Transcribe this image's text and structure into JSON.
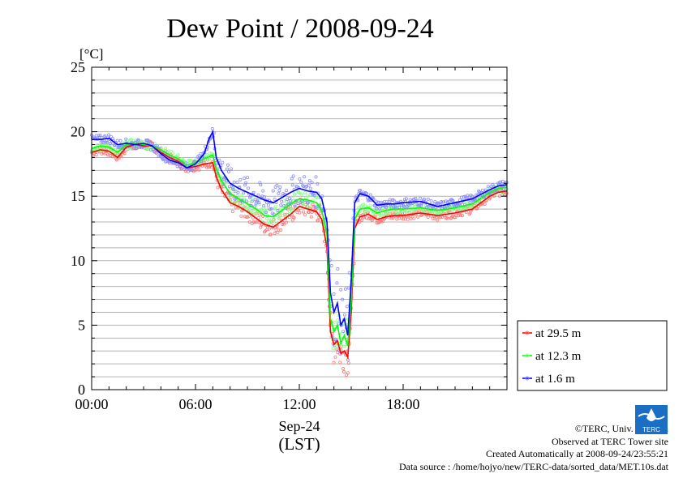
{
  "chart_data": {
    "type": "line",
    "title": "Dew Point / 2008-09-24",
    "ylabel": "[°C]",
    "xlabel_date": "Sep-24",
    "xlabel_tz": "(LST)",
    "ylim": [
      0,
      25
    ],
    "xlim_hours": [
      0,
      24
    ],
    "yticks": [
      "0",
      "5",
      "10",
      "15",
      "20",
      "25"
    ],
    "xticks": [
      {
        "hour": 0,
        "label": "00:00"
      },
      {
        "hour": 6,
        "label": "06:00"
      },
      {
        "hour": 12,
        "label": "12:00"
      },
      {
        "hour": 18,
        "label": "18:00"
      }
    ],
    "grid": true,
    "legend_position": "lower-right, outside plot",
    "series": [
      {
        "name": "at 29.5 m",
        "color": "#ff0000",
        "points": [
          [
            0,
            18.4
          ],
          [
            0.5,
            18.6
          ],
          [
            1,
            18.5
          ],
          [
            1.5,
            18.0
          ],
          [
            2,
            18.8
          ],
          [
            2.5,
            19.0
          ],
          [
            3,
            18.9
          ],
          [
            3.5,
            18.9
          ],
          [
            4,
            18.4
          ],
          [
            4.5,
            18.0
          ],
          [
            5,
            17.7
          ],
          [
            5.5,
            17.2
          ],
          [
            6,
            17.3
          ],
          [
            6.5,
            17.5
          ],
          [
            7,
            17.6
          ],
          [
            7.2,
            16.5
          ],
          [
            7.5,
            15.5
          ],
          [
            8,
            14.5
          ],
          [
            8.5,
            14.2
          ],
          [
            9,
            13.8
          ],
          [
            9.5,
            13.3
          ],
          [
            10,
            12.8
          ],
          [
            10.5,
            12.6
          ],
          [
            11,
            13.1
          ],
          [
            11.5,
            13.6
          ],
          [
            12,
            14.2
          ],
          [
            12.5,
            14.0
          ],
          [
            13,
            13.8
          ],
          [
            13.3,
            13.2
          ],
          [
            13.6,
            11.0
          ],
          [
            13.8,
            4.5
          ],
          [
            14,
            3.5
          ],
          [
            14.2,
            3.8
          ],
          [
            14.4,
            2.8
          ],
          [
            14.6,
            3.0
          ],
          [
            14.8,
            2.5
          ],
          [
            15,
            6.0
          ],
          [
            15.2,
            12.5
          ],
          [
            15.5,
            13.4
          ],
          [
            16,
            13.6
          ],
          [
            16.5,
            13.2
          ],
          [
            17,
            13.4
          ],
          [
            17.5,
            13.5
          ],
          [
            18,
            13.5
          ],
          [
            19,
            13.7
          ],
          [
            20,
            13.5
          ],
          [
            21,
            13.7
          ],
          [
            22,
            14.0
          ],
          [
            23,
            15.0
          ],
          [
            23.5,
            15.3
          ],
          [
            24,
            15.4
          ]
        ]
      },
      {
        "name": "at 12.3 m",
        "color": "#00ff00",
        "points": [
          [
            0,
            18.7
          ],
          [
            0.5,
            18.9
          ],
          [
            1,
            18.8
          ],
          [
            1.5,
            18.4
          ],
          [
            2,
            19.0
          ],
          [
            2.5,
            19.1
          ],
          [
            3,
            19.0
          ],
          [
            3.5,
            18.9
          ],
          [
            4,
            18.6
          ],
          [
            4.5,
            18.2
          ],
          [
            5,
            17.9
          ],
          [
            5.5,
            17.4
          ],
          [
            6,
            17.6
          ],
          [
            6.5,
            17.9
          ],
          [
            7,
            18.2
          ],
          [
            7.2,
            17.1
          ],
          [
            7.5,
            16.2
          ],
          [
            8,
            15.2
          ],
          [
            8.5,
            14.8
          ],
          [
            9,
            14.4
          ],
          [
            9.5,
            14.0
          ],
          [
            10,
            13.5
          ],
          [
            10.5,
            13.4
          ],
          [
            11,
            13.9
          ],
          [
            11.5,
            14.4
          ],
          [
            12,
            14.8
          ],
          [
            12.5,
            14.7
          ],
          [
            13,
            14.5
          ],
          [
            13.3,
            13.9
          ],
          [
            13.6,
            12.0
          ],
          [
            13.8,
            5.5
          ],
          [
            14,
            4.5
          ],
          [
            14.2,
            5.0
          ],
          [
            14.4,
            3.6
          ],
          [
            14.6,
            4.2
          ],
          [
            14.8,
            3.4
          ],
          [
            15,
            7.0
          ],
          [
            15.2,
            13.2
          ],
          [
            15.5,
            14.0
          ],
          [
            16,
            14.1
          ],
          [
            16.5,
            13.7
          ],
          [
            17,
            13.9
          ],
          [
            17.5,
            14.0
          ],
          [
            18,
            14.0
          ],
          [
            19,
            14.1
          ],
          [
            20,
            13.9
          ],
          [
            21,
            14.1
          ],
          [
            22,
            14.4
          ],
          [
            23,
            15.3
          ],
          [
            23.5,
            15.6
          ],
          [
            24,
            15.7
          ]
        ]
      },
      {
        "name": "at 1.6 m",
        "color": "#0000ff",
        "points": [
          [
            0,
            19.4
          ],
          [
            0.5,
            19.4
          ],
          [
            1,
            19.5
          ],
          [
            1.5,
            19.0
          ],
          [
            2,
            19.1
          ],
          [
            2.5,
            19.0
          ],
          [
            3,
            19.1
          ],
          [
            3.5,
            18.9
          ],
          [
            4,
            18.3
          ],
          [
            4.5,
            17.8
          ],
          [
            5,
            17.6
          ],
          [
            5.5,
            17.2
          ],
          [
            6,
            17.5
          ],
          [
            6.5,
            18.3
          ],
          [
            6.8,
            19.5
          ],
          [
            7,
            20.0
          ],
          [
            7.2,
            18.0
          ],
          [
            7.5,
            17.0
          ],
          [
            8,
            16.0
          ],
          [
            8.5,
            15.6
          ],
          [
            9,
            15.3
          ],
          [
            9.5,
            15.0
          ],
          [
            10,
            14.7
          ],
          [
            10.5,
            14.5
          ],
          [
            11,
            14.9
          ],
          [
            11.5,
            15.3
          ],
          [
            12,
            15.6
          ],
          [
            12.5,
            15.4
          ],
          [
            13,
            15.3
          ],
          [
            13.3,
            14.8
          ],
          [
            13.6,
            13.0
          ],
          [
            13.8,
            7.5
          ],
          [
            14,
            6.0
          ],
          [
            14.2,
            6.7
          ],
          [
            14.4,
            5.0
          ],
          [
            14.6,
            5.5
          ],
          [
            14.8,
            4.2
          ],
          [
            15,
            8.5
          ],
          [
            15.2,
            14.5
          ],
          [
            15.5,
            15.2
          ],
          [
            16,
            15.0
          ],
          [
            16.5,
            14.3
          ],
          [
            17,
            14.4
          ],
          [
            17.5,
            14.4
          ],
          [
            18,
            14.5
          ],
          [
            19,
            14.6
          ],
          [
            20,
            14.2
          ],
          [
            21,
            14.5
          ],
          [
            22,
            14.8
          ],
          [
            23,
            15.5
          ],
          [
            23.5,
            15.8
          ],
          [
            24,
            15.9
          ]
        ]
      }
    ]
  },
  "credits": {
    "copyright": "©TERC, Univ. Tsukuba",
    "site": "Observed at TERC Tower site",
    "created": "Created Automatically at 2008-09-24/23:55:21",
    "source": "Data source : /home/hojyo/new/TERC-data/sorted_data/MET.10s.dat"
  },
  "logo": {
    "text": "TERC",
    "color": "#1a6fc4"
  }
}
